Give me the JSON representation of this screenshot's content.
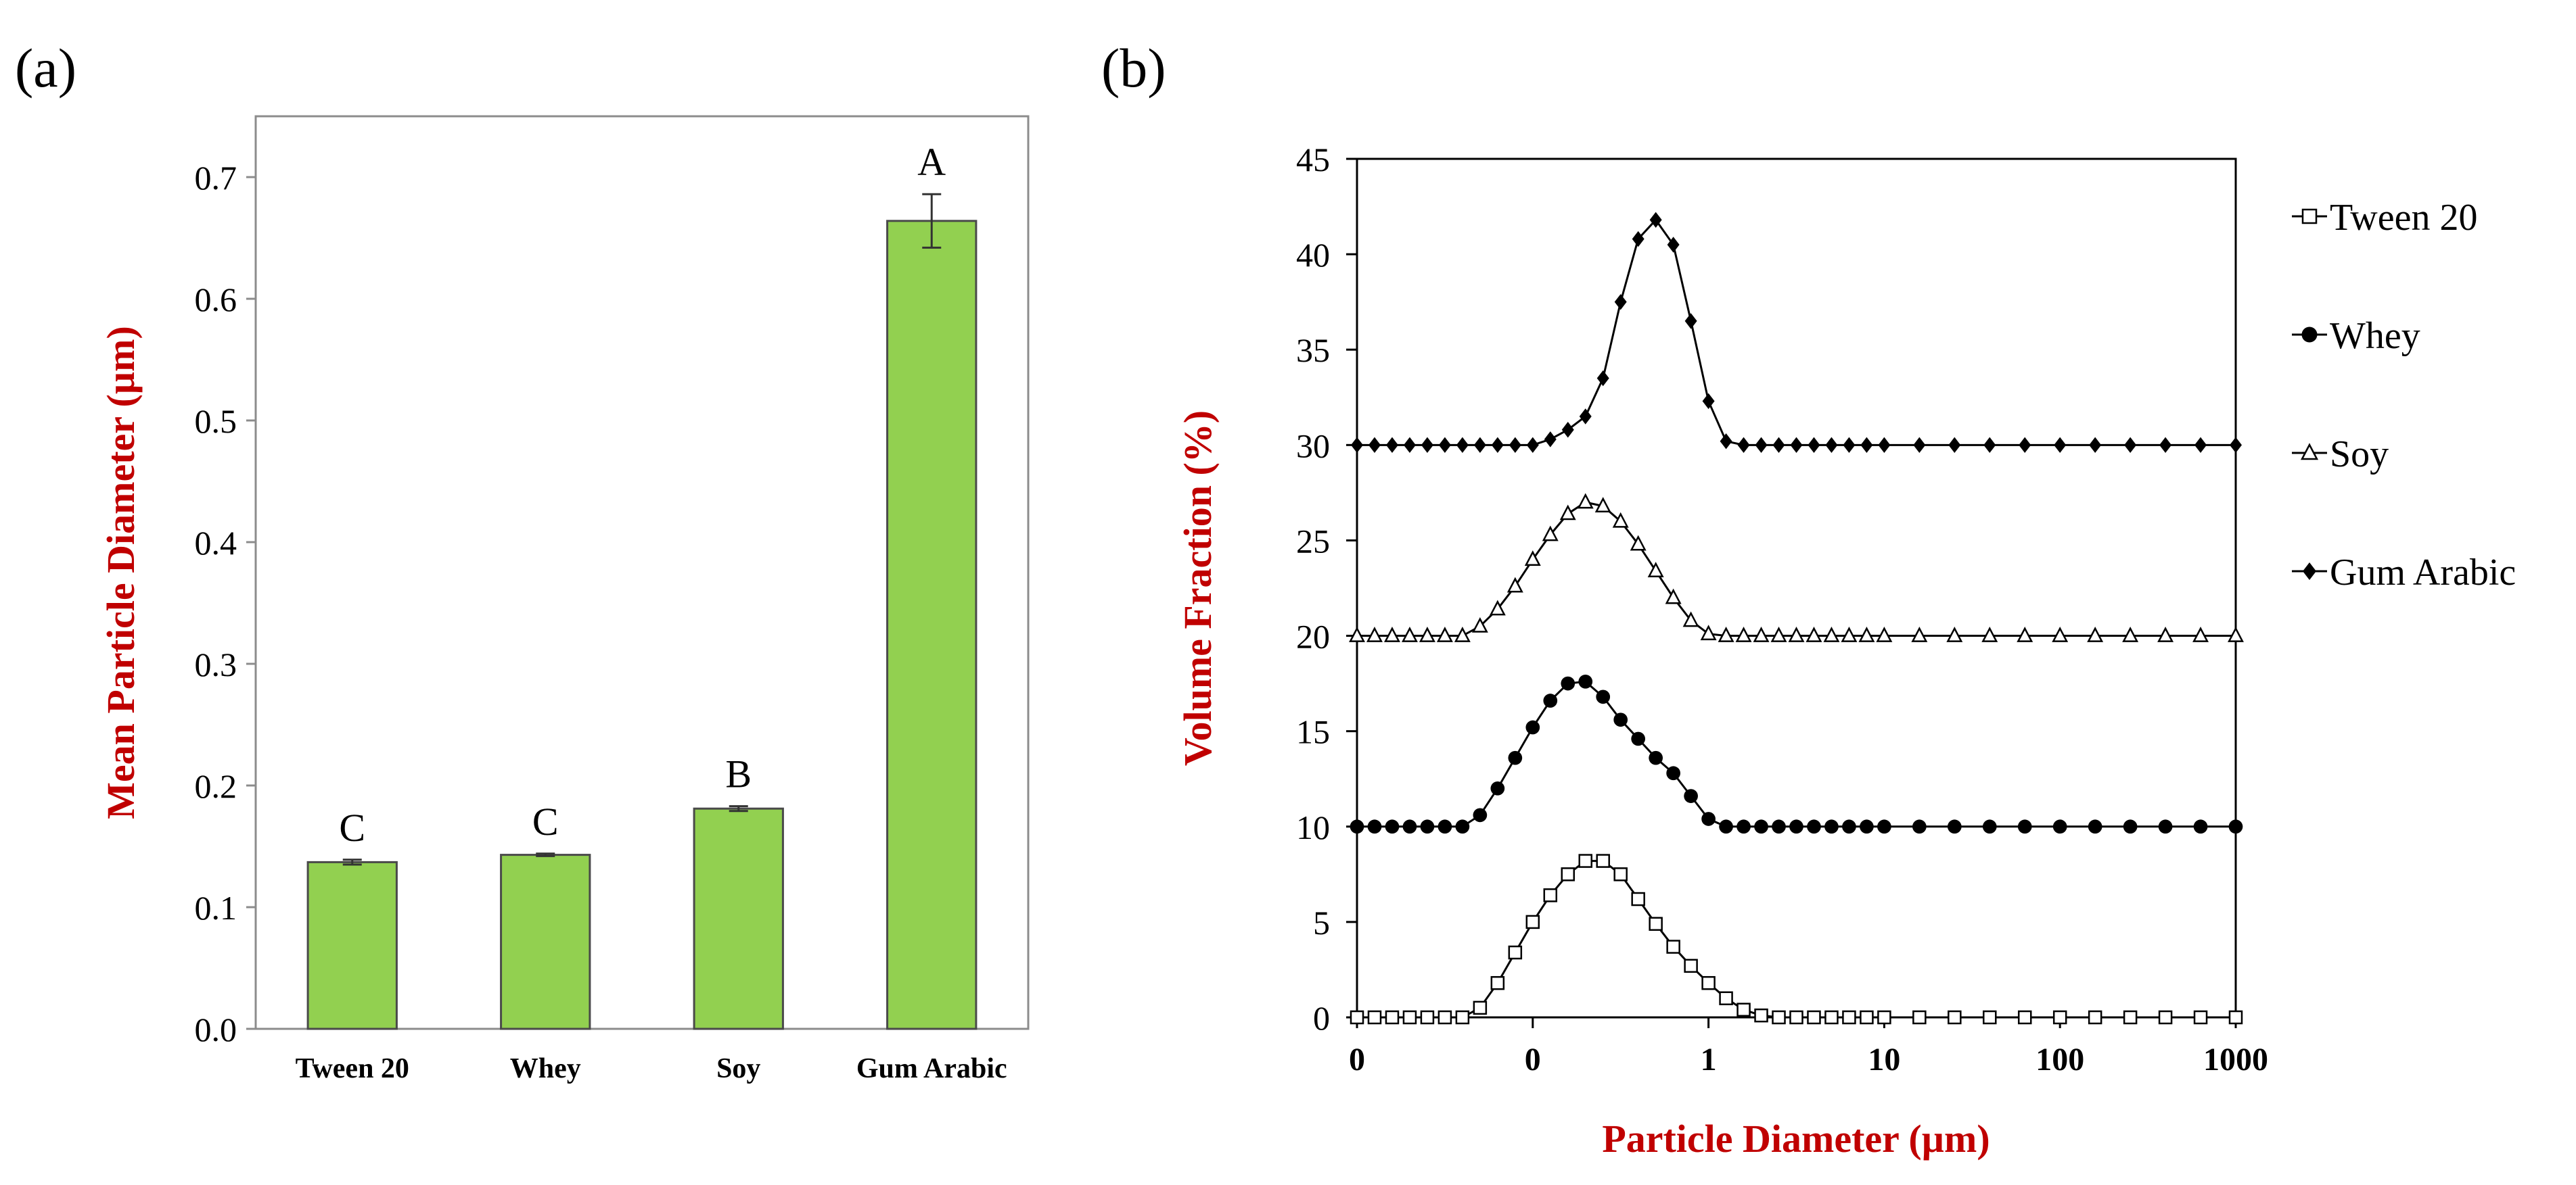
{
  "panels": {
    "a_label": "(a)",
    "b_label": "(b)"
  },
  "colors": {
    "bar_fill": "#92d050",
    "bar_stroke": "#4a4a4a",
    "axis_title": "#c00000",
    "series_line": "#000000"
  },
  "chart_data": [
    {
      "type": "bar",
      "panel": "(a)",
      "categories": [
        "Tween 20",
        "Whey",
        "Soy",
        "Gum Arabic"
      ],
      "values": [
        0.137,
        0.143,
        0.181,
        0.664
      ],
      "errors": [
        0.002,
        0.001,
        0.002,
        0.022
      ],
      "letters": [
        "C",
        "C",
        "B",
        "A"
      ],
      "title": "",
      "xlabel": "",
      "ylabel": "Mean Particle Diameter (µm)",
      "ylim": [
        0,
        0.75
      ],
      "yticks": [
        0.0,
        0.1,
        0.2,
        0.3,
        0.4,
        0.5,
        0.6,
        0.7
      ],
      "ytick_labels": [
        "0.0",
        "0.1",
        "0.2",
        "0.3",
        "0.4",
        "0.5",
        "0.6",
        "0.7"
      ],
      "grid": false
    },
    {
      "type": "line",
      "panel": "(b)",
      "xscale": "log",
      "xlim_exp": [
        -2,
        3
      ],
      "xticks_exp": [
        -2,
        -1,
        0,
        1,
        2,
        3
      ],
      "xtick_labels": [
        "0",
        "0",
        "1",
        "10",
        "100",
        "1000"
      ],
      "ylim": [
        0,
        45
      ],
      "yticks": [
        0,
        5,
        10,
        15,
        20,
        25,
        30,
        35,
        40,
        45
      ],
      "ytick_labels": [
        "0",
        "5",
        "10",
        "15",
        "20",
        "25",
        "30",
        "35",
        "40",
        "45"
      ],
      "xlabel": "Particle Diameter (µm)",
      "ylabel": "Volume Fraction (%)",
      "legend_position": "right",
      "grid": false,
      "series": [
        {
          "name": "Tween 20",
          "marker": "open-square",
          "offset": 0,
          "x_exp": [
            -2.0,
            -1.9,
            -1.8,
            -1.7,
            -1.6,
            -1.5,
            -1.4,
            -1.3,
            -1.2,
            -1.1,
            -1.0,
            -0.9,
            -0.8,
            -0.7,
            -0.6,
            -0.5,
            -0.4,
            -0.3,
            -0.2,
            -0.1,
            0.0,
            0.1,
            0.2,
            0.3,
            0.4,
            0.5,
            0.6,
            0.7,
            0.8,
            0.9,
            1.0,
            1.2,
            1.4,
            1.6,
            1.8,
            2.0,
            2.2,
            2.4,
            2.6,
            2.8,
            3.0
          ],
          "y": [
            0,
            0,
            0,
            0,
            0,
            0,
            0,
            0.5,
            1.8,
            3.4,
            5.0,
            6.4,
            7.5,
            8.2,
            8.2,
            7.5,
            6.2,
            4.9,
            3.7,
            2.7,
            1.8,
            1.0,
            0.4,
            0.1,
            0,
            0,
            0,
            0,
            0,
            0,
            0,
            0,
            0,
            0,
            0,
            0,
            0,
            0,
            0,
            0,
            0
          ]
        },
        {
          "name": "Whey",
          "marker": "filled-circle",
          "offset": 10,
          "x_exp": [
            -2.0,
            -1.9,
            -1.8,
            -1.7,
            -1.6,
            -1.5,
            -1.4,
            -1.3,
            -1.2,
            -1.1,
            -1.0,
            -0.9,
            -0.8,
            -0.7,
            -0.6,
            -0.5,
            -0.4,
            -0.3,
            -0.2,
            -0.1,
            0.0,
            0.1,
            0.2,
            0.3,
            0.4,
            0.5,
            0.6,
            0.7,
            0.8,
            0.9,
            1.0,
            1.2,
            1.4,
            1.6,
            1.8,
            2.0,
            2.2,
            2.4,
            2.6,
            2.8,
            3.0
          ],
          "y": [
            0,
            0,
            0,
            0,
            0,
            0,
            0,
            0.6,
            2.0,
            3.6,
            5.2,
            6.6,
            7.5,
            7.6,
            6.8,
            5.6,
            4.6,
            3.6,
            2.8,
            1.6,
            0.4,
            0,
            0,
            0,
            0,
            0,
            0,
            0,
            0,
            0,
            0,
            0,
            0,
            0,
            0,
            0,
            0,
            0,
            0,
            0,
            0
          ]
        },
        {
          "name": "Soy",
          "marker": "open-triangle",
          "offset": 20,
          "x_exp": [
            -2.0,
            -1.9,
            -1.8,
            -1.7,
            -1.6,
            -1.5,
            -1.4,
            -1.3,
            -1.2,
            -1.1,
            -1.0,
            -0.9,
            -0.8,
            -0.7,
            -0.6,
            -0.5,
            -0.4,
            -0.3,
            -0.2,
            -0.1,
            0.0,
            0.1,
            0.2,
            0.3,
            0.4,
            0.5,
            0.6,
            0.7,
            0.8,
            0.9,
            1.0,
            1.2,
            1.4,
            1.6,
            1.8,
            2.0,
            2.2,
            2.4,
            2.6,
            2.8,
            3.0
          ],
          "y": [
            0,
            0,
            0,
            0,
            0,
            0,
            0,
            0.5,
            1.4,
            2.6,
            4.0,
            5.3,
            6.4,
            7.0,
            6.8,
            6.0,
            4.8,
            3.4,
            2.0,
            0.8,
            0.1,
            0,
            0,
            0,
            0,
            0,
            0,
            0,
            0,
            0,
            0,
            0,
            0,
            0,
            0,
            0,
            0,
            0,
            0,
            0,
            0
          ]
        },
        {
          "name": "Gum Arabic",
          "marker": "filled-diamond",
          "offset": 30,
          "x_exp": [
            -2.0,
            -1.9,
            -1.8,
            -1.7,
            -1.6,
            -1.5,
            -1.4,
            -1.3,
            -1.2,
            -1.1,
            -1.0,
            -0.9,
            -0.8,
            -0.7,
            -0.6,
            -0.5,
            -0.4,
            -0.3,
            -0.2,
            -0.1,
            0.0,
            0.1,
            0.2,
            0.3,
            0.4,
            0.5,
            0.6,
            0.7,
            0.8,
            0.9,
            1.0,
            1.2,
            1.4,
            1.6,
            1.8,
            2.0,
            2.2,
            2.4,
            2.6,
            2.8,
            3.0
          ],
          "y": [
            0,
            0,
            0,
            0,
            0,
            0,
            0,
            0,
            0,
            0,
            0,
            0.3,
            0.8,
            1.5,
            3.5,
            7.5,
            10.8,
            11.8,
            10.5,
            6.5,
            2.3,
            0.2,
            0,
            0,
            0,
            0,
            0,
            0,
            0,
            0,
            0,
            0,
            0,
            0,
            0,
            0,
            0,
            0,
            0,
            0,
            0
          ]
        }
      ]
    }
  ]
}
